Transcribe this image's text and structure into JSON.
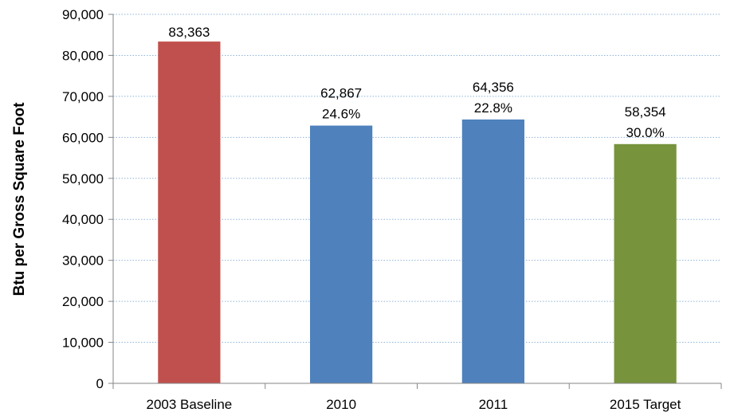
{
  "chart_data": {
    "type": "bar",
    "title": "",
    "xlabel": "",
    "ylabel": "Btu per Gross Square Foot",
    "ylim": [
      0,
      90000
    ],
    "yticks": [
      0,
      10000,
      20000,
      30000,
      40000,
      50000,
      60000,
      70000,
      80000,
      90000
    ],
    "ytick_labels": [
      "0",
      "10,000",
      "20,000",
      "30,000",
      "40,000",
      "50,000",
      "60,000",
      "70,000",
      "80,000",
      "90,000"
    ],
    "grid": true,
    "legend": "none",
    "categories": [
      "2003 Baseline",
      "2010",
      "2011",
      "2015 Target"
    ],
    "values": [
      83363,
      62867,
      64356,
      58354
    ],
    "value_labels": [
      "83,363",
      "62,867",
      "64,356",
      "58,354"
    ],
    "percent_labels": [
      "",
      "24.6%",
      "22.8%",
      "30.0%"
    ],
    "colors": [
      "#c0504d",
      "#4f81bd",
      "#4f81bd",
      "#77933c"
    ]
  }
}
